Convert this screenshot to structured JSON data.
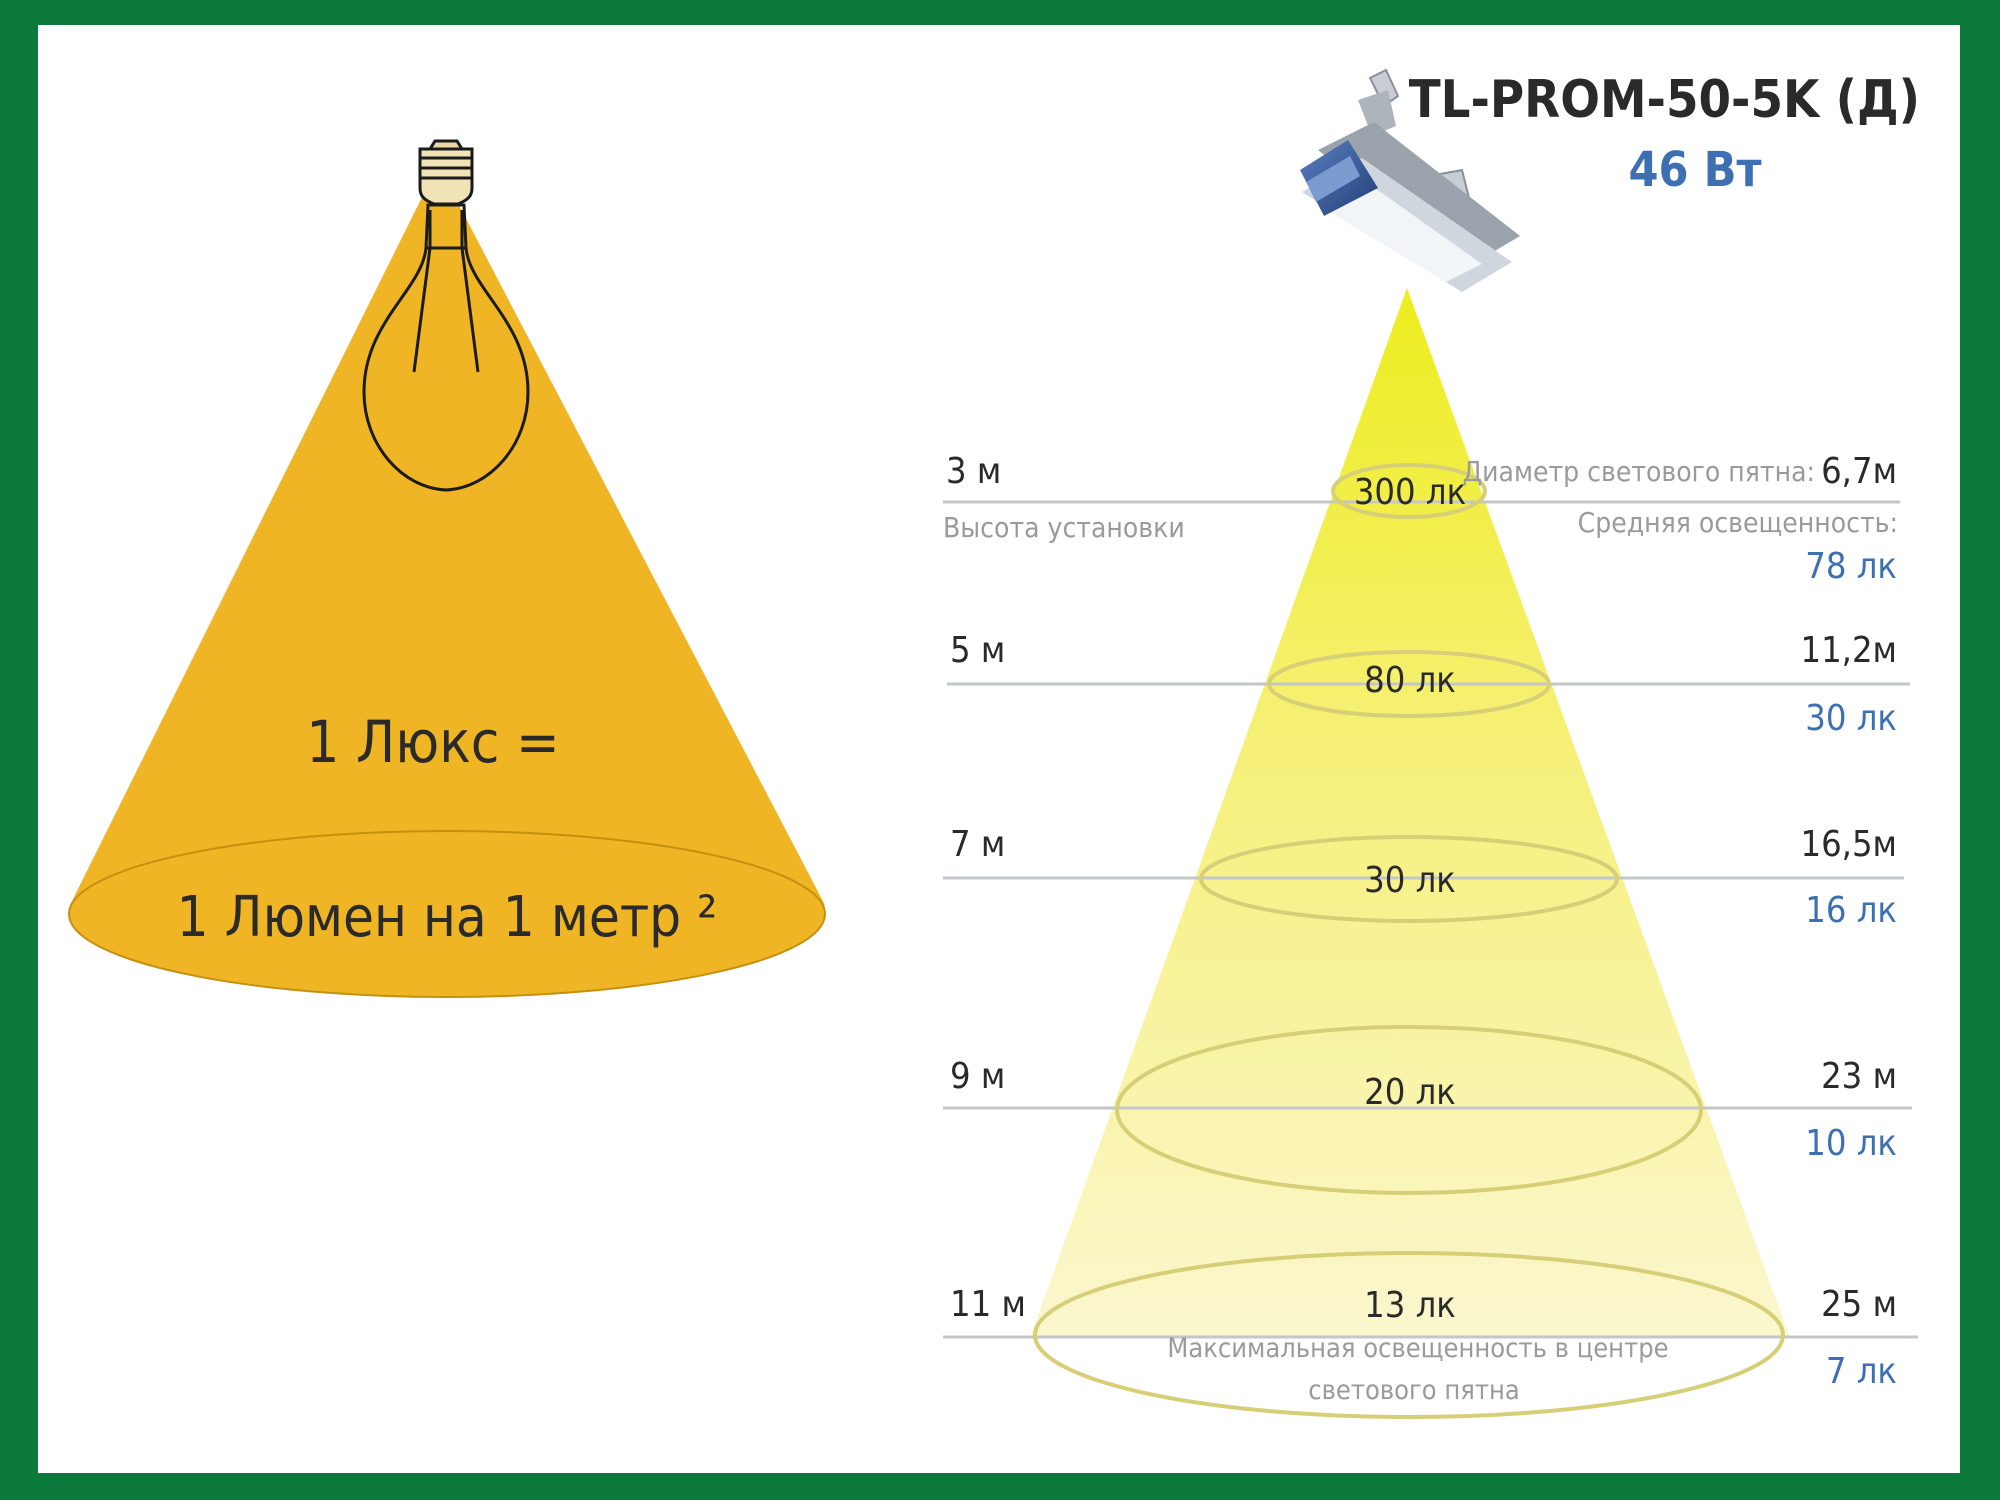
{
  "left": {
    "definition_line1": "1 Люкс =",
    "definition_line2": "1 Люмен на 1 метр ²",
    "cone_color": "#efb524",
    "bulb_icon": "light-bulb-icon"
  },
  "right": {
    "product_name": "TL-PROM-50-5K (Д)",
    "power": "46 Вт",
    "luminaire_icon": "led-luminaire-icon",
    "height_label": "Высота установки",
    "diameter_label": "Диаметр светового пятна:",
    "average_label": "Средняя освещенность:",
    "center_note_line1": "Максимальная освещенность в центре",
    "center_note_line2": "светового пятна",
    "accent_color": "#3d6fb3",
    "levels": [
      {
        "height": "3 м",
        "center": "300 лк",
        "diameter": "6,7м",
        "average": "78 лк"
      },
      {
        "height": "5 м",
        "center": "80 лк",
        "diameter": "11,2м",
        "average": "30 лк"
      },
      {
        "height": "7 м",
        "center": "30 лк",
        "diameter": "16,5м",
        "average": "16 лк"
      },
      {
        "height": "9 м",
        "center": "20 лк",
        "diameter": "23 м",
        "average": "10 лк"
      },
      {
        "height": "11 м",
        "center": "13 лк",
        "diameter": "25 м",
        "average": "7 лк"
      }
    ]
  }
}
